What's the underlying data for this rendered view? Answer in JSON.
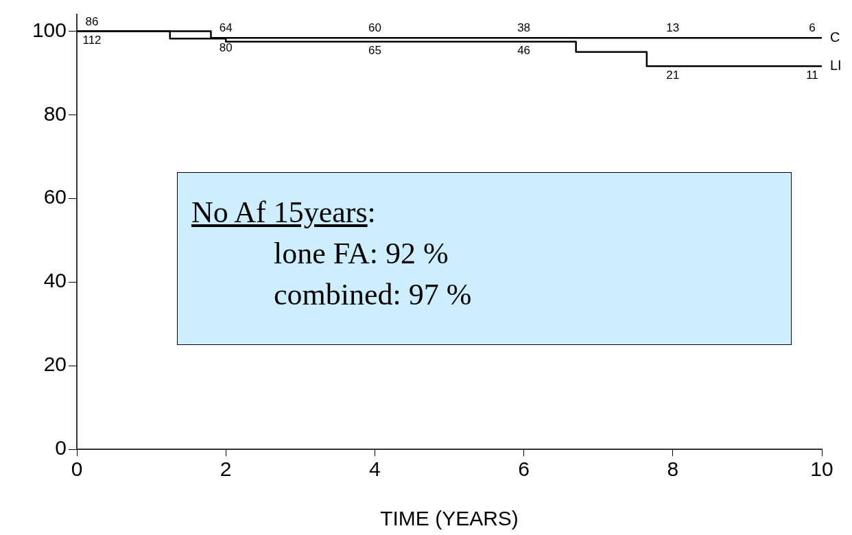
{
  "chart_data": {
    "type": "step",
    "xlabel": "TIME (YEARS)",
    "xlim": [
      0,
      10
    ],
    "xticks": [
      0,
      2,
      4,
      6,
      8,
      10
    ],
    "ylim": [
      0,
      104
    ],
    "yticks": [
      0,
      20,
      40,
      60,
      80,
      100
    ],
    "grid": false,
    "legend": false,
    "marker": "none",
    "line_style": "solid",
    "series": [
      {
        "name": "C",
        "color": "#000000",
        "x": [
          0,
          1.8,
          10
        ],
        "values": [
          100,
          98.4,
          98.4
        ]
      },
      {
        "name": "LI",
        "color": "#000000",
        "x": [
          0,
          1.25,
          2,
          6.7,
          7.65,
          10
        ],
        "values": [
          100,
          98.2,
          97.5,
          95,
          91.6,
          91.6
        ]
      }
    ],
    "annotations": [
      "86",
      "112",
      "64",
      "80",
      "60",
      "65",
      "38",
      "46",
      "13",
      "21",
      "6",
      "11",
      "No Af 15years:",
      "lone FA: 92 %",
      "combined: 97 %"
    ]
  }
}
